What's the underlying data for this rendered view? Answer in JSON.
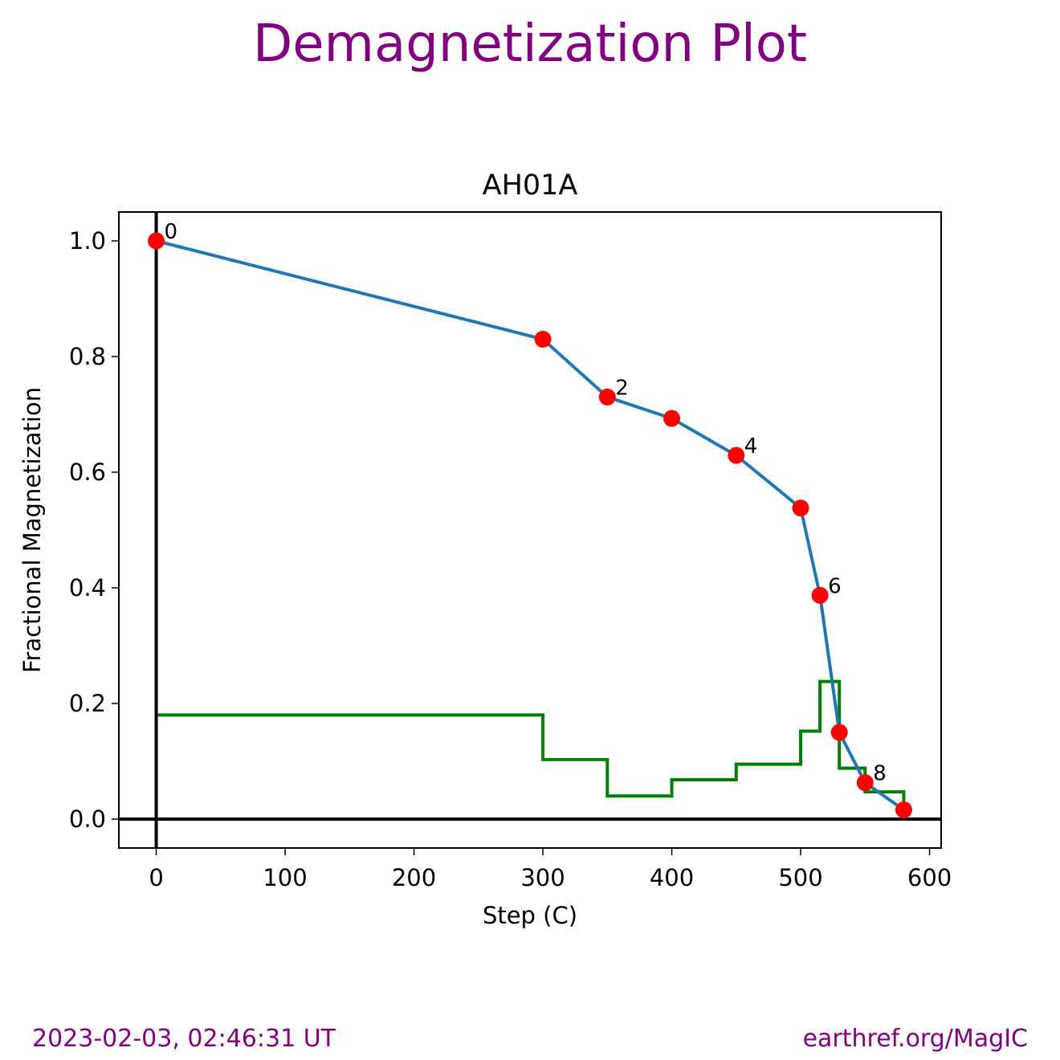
{
  "figure_title": "Demagnetization Plot",
  "footer": {
    "timestamp": "2023-02-03, 02:46:31 UT",
    "source": "earthref.org/MagIC"
  },
  "chart_data": {
    "type": "line",
    "title": "AH01A",
    "xlabel": "Step (C)",
    "ylabel": "Fractional Magnetization",
    "xlim": [
      -29,
      609
    ],
    "ylim": [
      -0.05,
      1.05
    ],
    "xticks": [
      0,
      100,
      200,
      300,
      400,
      500,
      600
    ],
    "yticks": [
      0.0,
      0.2,
      0.4,
      0.6,
      0.8,
      1.0
    ],
    "grid": false,
    "series": [
      {
        "kind": "line-with-markers",
        "color": "#1f77b4",
        "marker_color": "#ff0000",
        "x": [
          0,
          300,
          350,
          400,
          450,
          500,
          515,
          530,
          550,
          580
        ],
        "y": [
          1.0,
          0.83,
          0.73,
          0.693,
          0.629,
          0.538,
          0.387,
          0.15,
          0.063,
          0.016
        ]
      },
      {
        "kind": "step",
        "color": "#008000",
        "x": [
          0,
          300,
          350,
          400,
          450,
          500,
          515,
          530,
          550,
          580
        ],
        "y": [
          0.18,
          0.103,
          0.04,
          0.068,
          0.095,
          0.152,
          0.238,
          0.088,
          0.047,
          0.016
        ]
      }
    ],
    "point_labels": [
      {
        "index": 0,
        "text": "0"
      },
      {
        "index": 2,
        "text": "2"
      },
      {
        "index": 4,
        "text": "4"
      },
      {
        "index": 6,
        "text": "6"
      },
      {
        "index": 8,
        "text": "8"
      }
    ],
    "reference_lines": {
      "x": 0,
      "y": 0,
      "color": "#000000"
    }
  }
}
